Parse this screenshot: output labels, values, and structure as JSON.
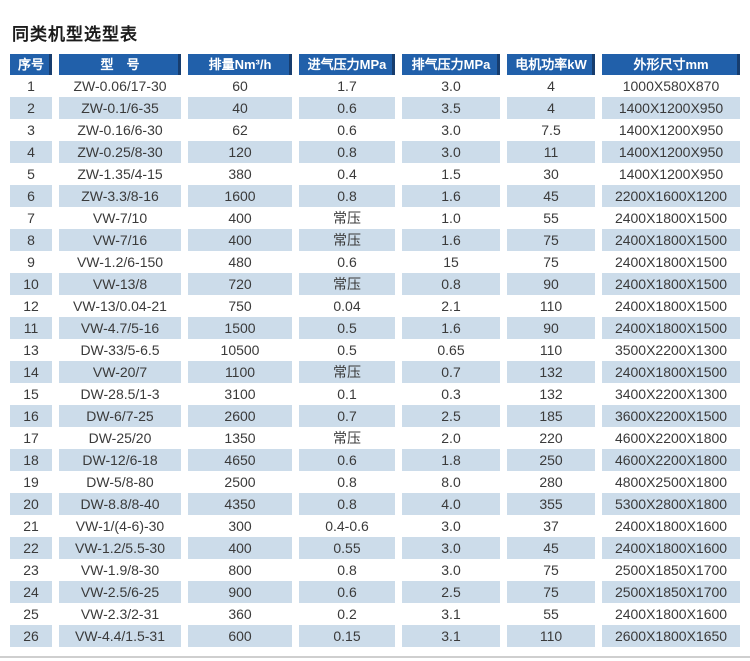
{
  "title": "同类机型选型表",
  "chart_data": {
    "type": "table",
    "title": "同类机型选型表",
    "columns": [
      "序号",
      "型　号",
      "排量Nm³/h",
      "进气压力MPa",
      "排气压力MPa",
      "电机功率kW",
      "外形尺寸mm"
    ],
    "rows": [
      [
        "1",
        "ZW-0.06/17-30",
        "60",
        "1.7",
        "3.0",
        "4",
        "1000X580X870"
      ],
      [
        "2",
        "ZW-0.1/6-35",
        "40",
        "0.6",
        "3.5",
        "4",
        "1400X1200X950"
      ],
      [
        "3",
        "ZW-0.16/6-30",
        "62",
        "0.6",
        "3.0",
        "7.5",
        "1400X1200X950"
      ],
      [
        "4",
        "ZW-0.25/8-30",
        "120",
        "0.8",
        "3.0",
        "11",
        "1400X1200X950"
      ],
      [
        "5",
        "ZW-1.35/4-15",
        "380",
        "0.4",
        "1.5",
        "30",
        "1400X1200X950"
      ],
      [
        "6",
        "ZW-3.3/8-16",
        "1600",
        "0.8",
        "1.6",
        "45",
        "2200X1600X1200"
      ],
      [
        "7",
        "VW-7/10",
        "400",
        "常压",
        "1.0",
        "55",
        "2400X1800X1500"
      ],
      [
        "8",
        "VW-7/16",
        "400",
        "常压",
        "1.6",
        "75",
        "2400X1800X1500"
      ],
      [
        "9",
        "VW-1.2/6-150",
        "480",
        "0.6",
        "15",
        "75",
        "2400X1800X1500"
      ],
      [
        "10",
        "VW-13/8",
        "720",
        "常压",
        "0.8",
        "90",
        "2400X1800X1500"
      ],
      [
        "12",
        "VW-13/0.04-21",
        "750",
        "0.04",
        "2.1",
        "110",
        "2400X1800X1500"
      ],
      [
        "11",
        "VW-4.7/5-16",
        "1500",
        "0.5",
        "1.6",
        "90",
        "2400X1800X1500"
      ],
      [
        "13",
        "DW-33/5-6.5",
        "10500",
        "0.5",
        "0.65",
        "110",
        "3500X2200X1300"
      ],
      [
        "14",
        "VW-20/7",
        "1100",
        "常压",
        "0.7",
        "132",
        "2400X1800X1500"
      ],
      [
        "15",
        "DW-28.5/1-3",
        "3100",
        "0.1",
        "0.3",
        "132",
        "3400X2200X1300"
      ],
      [
        "16",
        "DW-6/7-25",
        "2600",
        "0.7",
        "2.5",
        "185",
        "3600X2200X1500"
      ],
      [
        "17",
        "DW-25/20",
        "1350",
        "常压",
        "2.0",
        "220",
        "4600X2200X1800"
      ],
      [
        "18",
        "DW-12/6-18",
        "4650",
        "0.6",
        "1.8",
        "250",
        "4600X2200X1800"
      ],
      [
        "19",
        "DW-5/8-80",
        "2500",
        "0.8",
        "8.0",
        "280",
        "4800X2500X1800"
      ],
      [
        "20",
        "DW-8.8/8-40",
        "4350",
        "0.8",
        "4.0",
        "355",
        "5300X2800X1800"
      ],
      [
        "21",
        "VW-1/(4-6)-30",
        "300",
        "0.4-0.6",
        "3.0",
        "37",
        "2400X1800X1600"
      ],
      [
        "22",
        "VW-1.2/5.5-30",
        "400",
        "0.55",
        "3.0",
        "45",
        "2400X1800X1600"
      ],
      [
        "23",
        "VW-1.9/8-30",
        "800",
        "0.8",
        "3.0",
        "75",
        "2500X1850X1700"
      ],
      [
        "24",
        "VW-2.5/6-25",
        "900",
        "0.6",
        "2.5",
        "75",
        "2500X1850X1700"
      ],
      [
        "25",
        "VW-2.3/2-31",
        "360",
        "0.2",
        "3.1",
        "55",
        "2400X1800X1600"
      ],
      [
        "26",
        "VW-4.4/1.5-31",
        "600",
        "0.15",
        "3.1",
        "110",
        "2600X1800X1650"
      ]
    ],
    "layout": {
      "grid": false,
      "striped": true,
      "header_position": "top"
    }
  },
  "colors": {
    "header_bg": "#2160aa",
    "header_edge": "#173d6e",
    "header_text": "#ffffff",
    "row_stripe_bg": "#ccdcea",
    "row_bg": "#ffffff",
    "body_text": "#3a3a3a",
    "bottom_rule": "#cfcfcf"
  }
}
